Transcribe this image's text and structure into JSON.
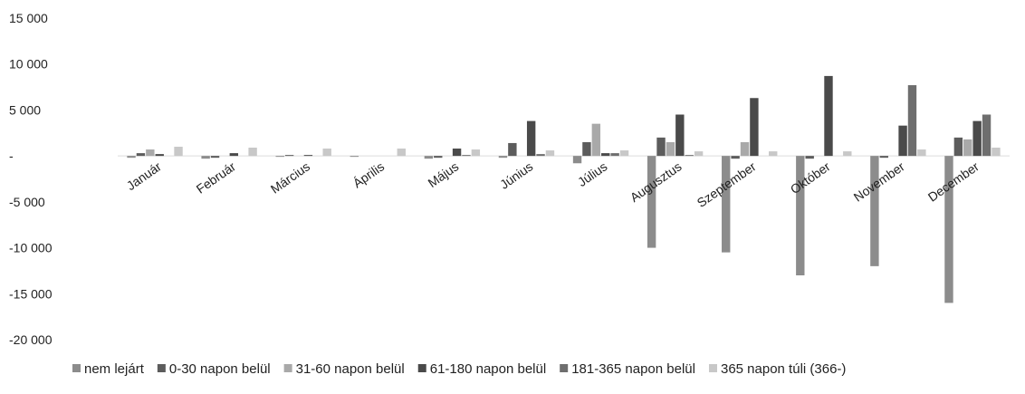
{
  "chart_data": {
    "type": "bar",
    "title": "",
    "xlabel": "",
    "ylabel": "",
    "ylim": [
      -20000,
      15000
    ],
    "yticks": [
      15000,
      10000,
      5000,
      0,
      -5000,
      -10000,
      -15000,
      -20000
    ],
    "ytick_labels": [
      "15 000",
      "10 000",
      "5 000",
      "-",
      "-5 000",
      "-10 000",
      "-15 000",
      "-20 000"
    ],
    "grid": false,
    "legend_position": "bottom",
    "categories": [
      "Január",
      "Február",
      "Március",
      "Április",
      "Május",
      "Június",
      "Július",
      "Augusztus",
      "Szeptember",
      "Október",
      "November",
      "December"
    ],
    "series": [
      {
        "name": "nem lejárt",
        "color": "#8c8c8c",
        "values": [
          -200,
          -300,
          -100,
          -100,
          -300,
          -200,
          -800,
          -10000,
          -10500,
          -13000,
          -12000,
          -16000
        ]
      },
      {
        "name": "0-30 napon belül",
        "color": "#5c5c5c",
        "values": [
          300,
          -200,
          100,
          0,
          -200,
          1400,
          1500,
          2000,
          -300,
          -300,
          -200,
          2000
        ]
      },
      {
        "name": "31-60 napon belül",
        "color": "#a9a9a9",
        "values": [
          700,
          0,
          0,
          0,
          0,
          0,
          3500,
          1500,
          1500,
          0,
          0,
          1800
        ]
      },
      {
        "name": "61-180 napon belül",
        "color": "#4a4a4a",
        "values": [
          200,
          300,
          100,
          0,
          800,
          3800,
          300,
          4500,
          6300,
          8700,
          3300,
          3800
        ]
      },
      {
        "name": "181-365 napon belül",
        "color": "#6e6e6e",
        "values": [
          0,
          0,
          0,
          0,
          100,
          200,
          300,
          100,
          0,
          0,
          7700,
          4500
        ]
      },
      {
        "name": "365 napon túli (366-)",
        "color": "#c8c8c8",
        "values": [
          1000,
          900,
          800,
          800,
          700,
          600,
          600,
          500,
          500,
          500,
          700,
          900
        ]
      }
    ]
  }
}
